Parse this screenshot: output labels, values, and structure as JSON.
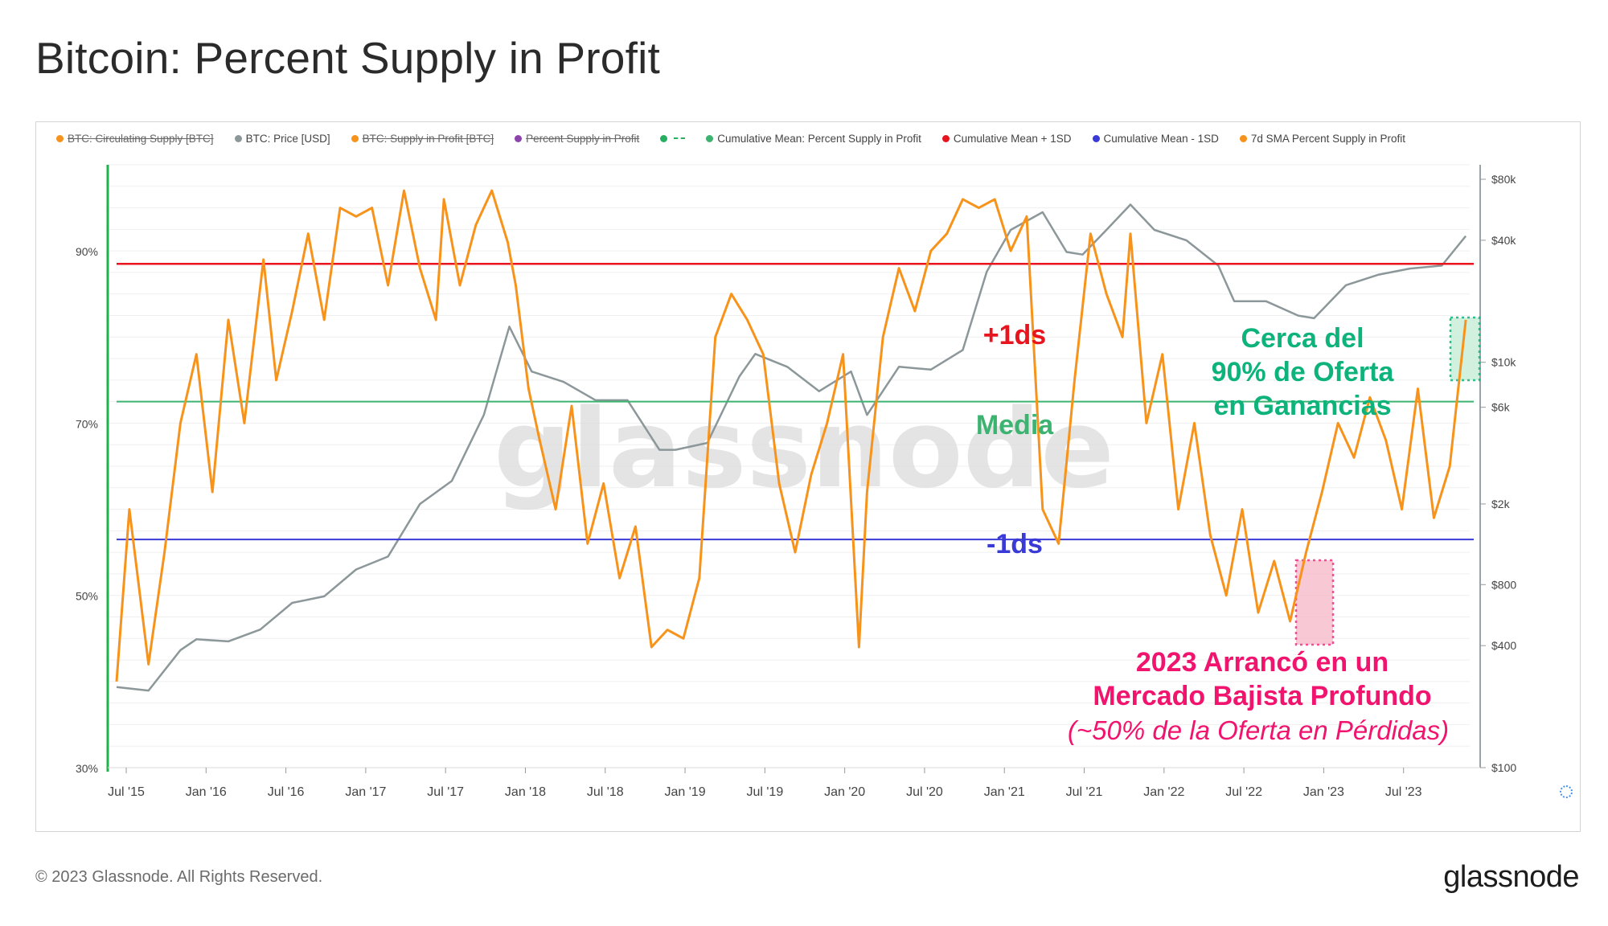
{
  "title": "Bitcoin: Percent Supply in Profit",
  "footer": "© 2023 Glassnode. All Rights Reserved.",
  "brand": "glassnode",
  "watermark": "glassnode",
  "legend": [
    {
      "label": "BTC: Circulating Supply [BTC]",
      "color": "#f7931a",
      "active": false
    },
    {
      "label": "BTC: Price [USD]",
      "color": "#8c979a",
      "active": true
    },
    {
      "label": "BTC: Supply in Profit [BTC]",
      "color": "#f7931a",
      "active": false
    },
    {
      "label": "Percent Supply in Profit",
      "color": "#8e44ad",
      "active": false
    },
    {
      "label": "",
      "color": "#27ae60",
      "active": true,
      "dash": true
    },
    {
      "label": "Cumulative Mean: Percent Supply in Profit",
      "color": "#3cb371",
      "active": true
    },
    {
      "label": "Cumulative Mean + 1SD",
      "color": "#e8141e",
      "active": true
    },
    {
      "label": "Cumulative Mean - 1SD",
      "color": "#3a3ad6",
      "active": true
    },
    {
      "label": "7d SMA Percent Supply in Profit",
      "color": "#f7931a",
      "active": true
    }
  ],
  "annotations": {
    "plus_sd": "+1ds",
    "mean": "Media",
    "minus_sd": "-1ds",
    "near90": [
      "Cerca del",
      "90% de Oferta",
      "en Ganancias"
    ],
    "bear": [
      "2023 Arrancó en un",
      "Mercado Bajista Profundo"
    ],
    "bear_sub": "(~50% de la Oferta en Pérdidas)"
  },
  "colors": {
    "plus_sd": "#e8141e",
    "mean": "#3cb371",
    "minus_sd": "#3a3ad6",
    "sma": "#f7931a",
    "price": "#8c979a",
    "near90_text": "#0db37a",
    "bear_text": "#f0146e"
  },
  "chart_data": {
    "type": "line",
    "x_ticks": [
      "Jul '15",
      "Jan '16",
      "Jul '16",
      "Jan '17",
      "Jul '17",
      "Jan '18",
      "Jul '18",
      "Jan '19",
      "Jul '19",
      "Jan '20",
      "Jul '20",
      "Jan '21",
      "Jul '21",
      "Jan '22",
      "Jul '22",
      "Jan '23",
      "Jul '23"
    ],
    "x_range": [
      "2015-07",
      "2023-12"
    ],
    "y_left_ticks": [
      "30%",
      "50%",
      "70%",
      "90%"
    ],
    "ylim_left": [
      30,
      100
    ],
    "y_right_ticks": [
      "$100",
      "$400",
      "$800",
      "$2k",
      "$6k",
      "$10k",
      "$40k",
      "$80k"
    ],
    "ylim_right_log": [
      100,
      80000
    ],
    "reference_lines": {
      "mean_plus_1sd": 88.5,
      "mean": 72.5,
      "mean_minus_1sd": 56.5
    },
    "series": [
      {
        "name": "7d SMA Percent Supply in Profit",
        "axis": "left",
        "x": [
          2015.5,
          2015.58,
          2015.7,
          2015.8,
          2015.9,
          2016.0,
          2016.1,
          2016.2,
          2016.3,
          2016.42,
          2016.5,
          2016.6,
          2016.7,
          2016.8,
          2016.9,
          2017.0,
          2017.1,
          2017.2,
          2017.3,
          2017.4,
          2017.5,
          2017.55,
          2017.65,
          2017.75,
          2017.85,
          2017.95,
          2018.0,
          2018.08,
          2018.15,
          2018.25,
          2018.35,
          2018.45,
          2018.55,
          2018.65,
          2018.75,
          2018.85,
          2018.95,
          2019.05,
          2019.15,
          2019.25,
          2019.35,
          2019.45,
          2019.55,
          2019.65,
          2019.75,
          2019.85,
          2019.95,
          2020.05,
          2020.15,
          2020.2,
          2020.3,
          2020.4,
          2020.5,
          2020.6,
          2020.7,
          2020.8,
          2020.9,
          2021.0,
          2021.1,
          2021.2,
          2021.3,
          2021.4,
          2021.5,
          2021.6,
          2021.7,
          2021.8,
          2021.85,
          2021.95,
          2022.05,
          2022.15,
          2022.25,
          2022.35,
          2022.45,
          2022.55,
          2022.65,
          2022.75,
          2022.85,
          2022.95,
          2023.05,
          2023.15,
          2023.25,
          2023.35,
          2023.45,
          2023.55,
          2023.65,
          2023.75,
          2023.85,
          2023.95
        ],
        "y": [
          40,
          60,
          42,
          55,
          70,
          78,
          62,
          82,
          70,
          89,
          75,
          83,
          92,
          82,
          95,
          94,
          95,
          86,
          97,
          88,
          82,
          96,
          86,
          93,
          97,
          91,
          86,
          74,
          68,
          60,
          72,
          56,
          63,
          52,
          58,
          44,
          46,
          45,
          52,
          80,
          85,
          82,
          78,
          63,
          55,
          64,
          70,
          78,
          44,
          62,
          80,
          88,
          83,
          90,
          92,
          96,
          95,
          96,
          90,
          94,
          60,
          56,
          75,
          92,
          85,
          80,
          92,
          70,
          78,
          60,
          70,
          57,
          50,
          60,
          48,
          54,
          47,
          55,
          62,
          70,
          66,
          73,
          68,
          60,
          74,
          59,
          65,
          82
        ]
      },
      {
        "name": "BTC: Price [USD]",
        "axis": "right",
        "x": [
          2015.5,
          2015.7,
          2015.9,
          2016.0,
          2016.2,
          2016.4,
          2016.6,
          2016.8,
          2017.0,
          2017.2,
          2017.4,
          2017.6,
          2017.8,
          2017.96,
          2018.1,
          2018.3,
          2018.5,
          2018.7,
          2018.9,
          2019.0,
          2019.2,
          2019.4,
          2019.5,
          2019.7,
          2019.9,
          2020.1,
          2020.2,
          2020.4,
          2020.6,
          2020.8,
          2020.95,
          2021.1,
          2021.3,
          2021.45,
          2021.55,
          2021.7,
          2021.85,
          2022.0,
          2022.2,
          2022.4,
          2022.5,
          2022.7,
          2022.9,
          2023.0,
          2023.2,
          2023.4,
          2023.6,
          2023.8,
          2023.95
        ],
        "y": [
          250,
          240,
          380,
          430,
          420,
          480,
          650,
          700,
          950,
          1100,
          2000,
          2600,
          5500,
          15000,
          9000,
          8000,
          6500,
          6500,
          3700,
          3700,
          4000,
          8500,
          11000,
          9500,
          7200,
          9000,
          5500,
          9500,
          9200,
          11500,
          28000,
          45000,
          55000,
          35000,
          34000,
          45000,
          60000,
          45000,
          40000,
          30000,
          20000,
          20000,
          17000,
          16500,
          24000,
          27000,
          29000,
          30000,
          42000
        ]
      }
    ]
  }
}
